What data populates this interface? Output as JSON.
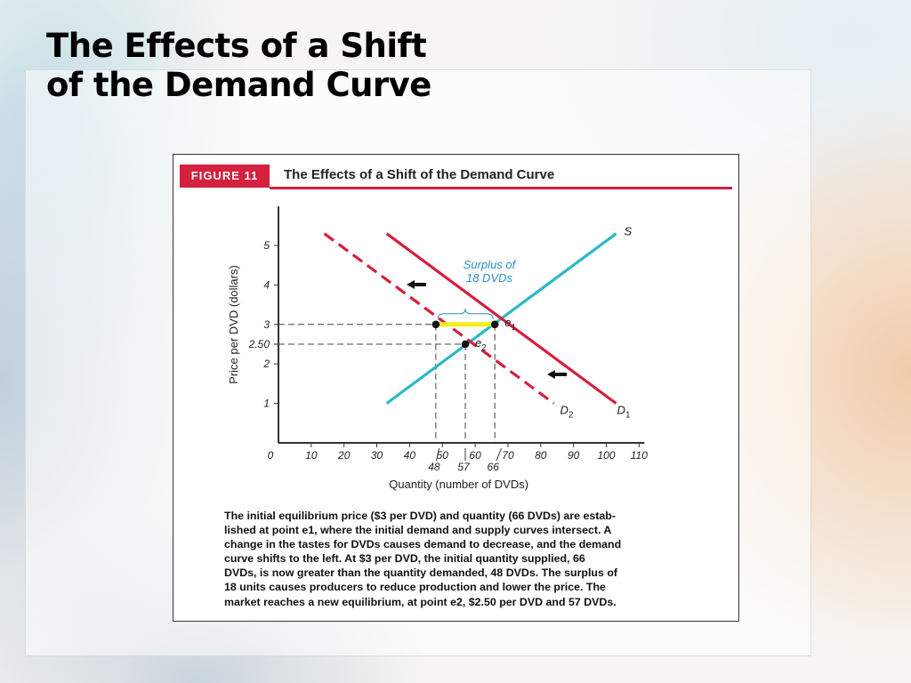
{
  "slide": {
    "title_line1": "The Effects of a Shift",
    "title_line2": "of the Demand Curve"
  },
  "figure": {
    "label": "FIGURE 11",
    "title": "The Effects of a Shift of the Demand Curve"
  },
  "chart_data": {
    "type": "line",
    "xlabel": "Quantity (number of DVDs)",
    "ylabel": "Price per DVD (dollars)",
    "xlim": [
      0,
      110
    ],
    "ylim": [
      0,
      5.5
    ],
    "x_ticks": [
      "0",
      "10",
      "20",
      "30",
      "40",
      "50",
      "60",
      "70",
      "80",
      "90",
      "100",
      "110"
    ],
    "x_ticks_extra": [
      "48",
      "57",
      "66"
    ],
    "y_ticks": [
      "1",
      "2",
      "2.50",
      "3",
      "4",
      "5"
    ],
    "grid": false,
    "series": [
      {
        "name": "S",
        "color": "#2bb8c8",
        "dash": false,
        "points": [
          [
            33,
            1.0
          ],
          [
            103,
            5.3
          ]
        ]
      },
      {
        "name": "D1",
        "name_main": "D",
        "name_sub": "1",
        "color": "#d4213d",
        "dash": false,
        "points": [
          [
            33,
            5.3
          ],
          [
            103,
            1.0
          ]
        ]
      },
      {
        "name": "D2",
        "name_main": "D",
        "name_sub": "2",
        "color": "#d4213d",
        "dash": true,
        "points": [
          [
            14,
            5.3
          ],
          [
            84,
            1.0
          ]
        ]
      }
    ],
    "points": [
      {
        "name": "e1",
        "label_main": "e",
        "label_sub": "1",
        "x": 66,
        "y": 3
      },
      {
        "name": "e2",
        "label_main": "e",
        "label_sub": "2",
        "x": 57,
        "y": 2.5
      },
      {
        "name": "demand-48",
        "x": 48,
        "y": 3
      }
    ],
    "surplus": {
      "from": 48,
      "to": 66,
      "price": 3,
      "color": "#f2ee1c"
    },
    "annotations": {
      "surplus_line1": "Surplus of",
      "surplus_line2": "18 DVDs"
    },
    "shift_arrows": 2
  },
  "caption": {
    "line1": "The initial equilibrium price ($3 per DVD) and quantity (66 DVDs) are estab-",
    "line2": "lished at point e1, where the initial demand and supply curves intersect. A",
    "line3": "change in the tastes for DVDs causes demand to decrease, and the demand",
    "line4": "curve shifts to the left. At $3 per DVD, the initial quantity supplied, 66",
    "line5": "DVDs, is now greater than the quantity demanded, 48 DVDs. The surplus of",
    "line6": "18 units causes producers to reduce production and lower the price. The",
    "line7": "market reaches a new equilibrium, at point e2, $2.50 per DVD and 57 DVDs."
  }
}
